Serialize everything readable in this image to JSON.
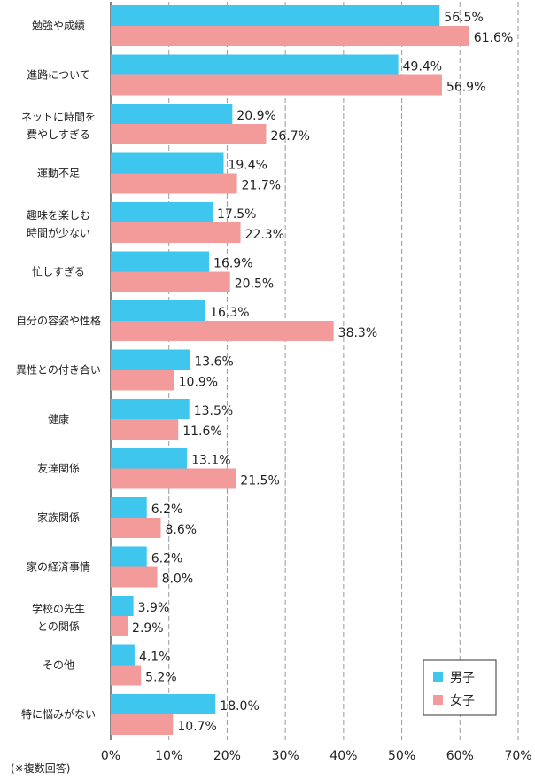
{
  "chart_data": {
    "type": "bar",
    "orientation": "horizontal",
    "categories": [
      [
        "勉強や成績"
      ],
      [
        "進路について"
      ],
      [
        "ネットに時間を",
        "費やしすぎる"
      ],
      [
        "運動不足"
      ],
      [
        "趣味を楽しむ",
        "時間が少ない"
      ],
      [
        "忙しすぎる"
      ],
      [
        "自分の容姿や性格"
      ],
      [
        "異性との付き合い"
      ],
      [
        "健康"
      ],
      [
        "友達関係"
      ],
      [
        "家族関係"
      ],
      [
        "家の経済事情"
      ],
      [
        "学校の先生",
        "との関係"
      ],
      [
        "その他"
      ],
      [
        "特に悩みがない"
      ]
    ],
    "series": [
      {
        "name": "男子",
        "color": "#3ec6ef",
        "values": [
          56.5,
          49.4,
          20.9,
          19.4,
          17.5,
          16.9,
          16.3,
          13.6,
          13.5,
          13.1,
          6.2,
          6.2,
          3.9,
          4.1,
          18.0
        ],
        "labels": [
          "56.5%",
          "49.4%",
          "20.9%",
          "19.4%",
          "17.5%",
          "16.9%",
          "16.3%",
          "13.6%",
          "13.5%",
          "13.1%",
          "6.2%",
          "6.2%",
          "3.9%",
          "4.1%",
          "18.0%"
        ]
      },
      {
        "name": "女子",
        "color": "#f39b9b",
        "values": [
          61.6,
          56.9,
          26.7,
          21.7,
          22.3,
          20.5,
          38.3,
          10.9,
          11.6,
          21.5,
          8.6,
          8.0,
          2.9,
          5.2,
          10.7
        ],
        "labels": [
          "61.6%",
          "56.9%",
          "26.7%",
          "21.7%",
          "22.3%",
          "20.5%",
          "38.3%",
          "10.9%",
          "11.6%",
          "21.5%",
          "8.6%",
          "8.0%",
          "2.9%",
          "5.2%",
          "10.7%"
        ]
      }
    ],
    "xlim": [
      0,
      70
    ],
    "x_ticks": [
      "0%",
      "10%",
      "20%",
      "30%",
      "40%",
      "50%",
      "60%",
      "70%"
    ],
    "grid": true,
    "legend_position": "bottom-right",
    "note": "(※複数回答)"
  }
}
